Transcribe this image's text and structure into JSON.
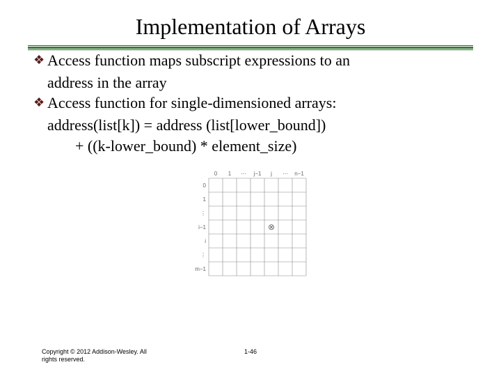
{
  "title": "Implementation of Arrays",
  "bullets": [
    {
      "lines": [
        "Access function maps subscript expressions to an",
        "address in the array"
      ]
    },
    {
      "lines": [
        "Access function for single-dimensioned arrays:",
        "address(list[k]) = address (list[lower_bound])",
        "+ ((k-lower_bound) * element_size)"
      ]
    }
  ],
  "footer": {
    "copyright": "Copyright © 2012 Addison-Wesley. All rights reserved.",
    "page": "1-46"
  },
  "colors": {
    "bullet": "#5a1a1a",
    "rule": "#3a7a3a",
    "text": "#000000",
    "bg": "#ffffff"
  },
  "diagram": {
    "rows": 7,
    "cols": 7,
    "col_labels": [
      "0",
      "1",
      "⋯",
      "j−1",
      "j",
      "⋯",
      "n−1"
    ],
    "row_labels": [
      "0",
      "1",
      "⋮",
      "i−1",
      "i",
      "⋮",
      "m−1"
    ],
    "cell_size": 20,
    "marker": {
      "row": 3,
      "col": 4,
      "symbol": "⊗"
    },
    "grid_color": "#888888",
    "label_color": "#666666",
    "label_fontsize": 8
  }
}
